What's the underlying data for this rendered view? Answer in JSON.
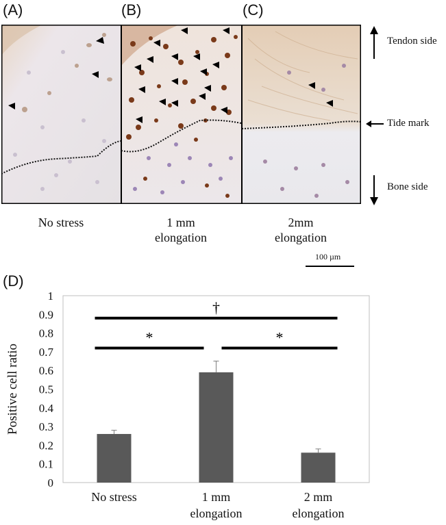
{
  "panels": {
    "a_label": "(A)",
    "b_label": "(B)",
    "c_label": "(C)",
    "d_label": "(D)"
  },
  "side_labels": {
    "tendon": "Tendon side",
    "tide": "Tide mark",
    "bone": "Bone side"
  },
  "captions": {
    "a": [
      "No stress",
      ""
    ],
    "b": [
      "1 mm",
      "elongation"
    ],
    "c": [
      "2mm",
      "elongation"
    ]
  },
  "scale_bar": "100 µm",
  "colors": {
    "bar": "#595959",
    "frame": "#000000",
    "tissue_light": "#e9e4e7",
    "tendon_tint": "#e6d2bf",
    "positive_cell": "#7a3a1a",
    "hema_cell": "#9c86b6"
  },
  "chart_data": {
    "type": "bar",
    "categories": [
      [
        "No stress"
      ],
      [
        "1 mm",
        "elongation"
      ],
      [
        "2 mm",
        "elongation"
      ]
    ],
    "values": [
      0.26,
      0.59,
      0.16
    ],
    "errors": [
      0.02,
      0.06,
      0.02
    ],
    "ylabel": "Positive cell ratio",
    "ylim": [
      0,
      1
    ],
    "yticks": [
      "0",
      "0.1",
      "0.2",
      "0.3",
      "0.4",
      "0.5",
      "0.6",
      "0.7",
      "0.8",
      "0.9",
      "1"
    ],
    "grid": false,
    "significance": [
      {
        "from": 0,
        "to": 2,
        "symbol": "†",
        "y": 0.88
      },
      {
        "from": 0,
        "to": 1,
        "symbol": "*",
        "y": 0.72
      },
      {
        "from": 1,
        "to": 2,
        "symbol": "*",
        "y": 0.72
      }
    ]
  }
}
